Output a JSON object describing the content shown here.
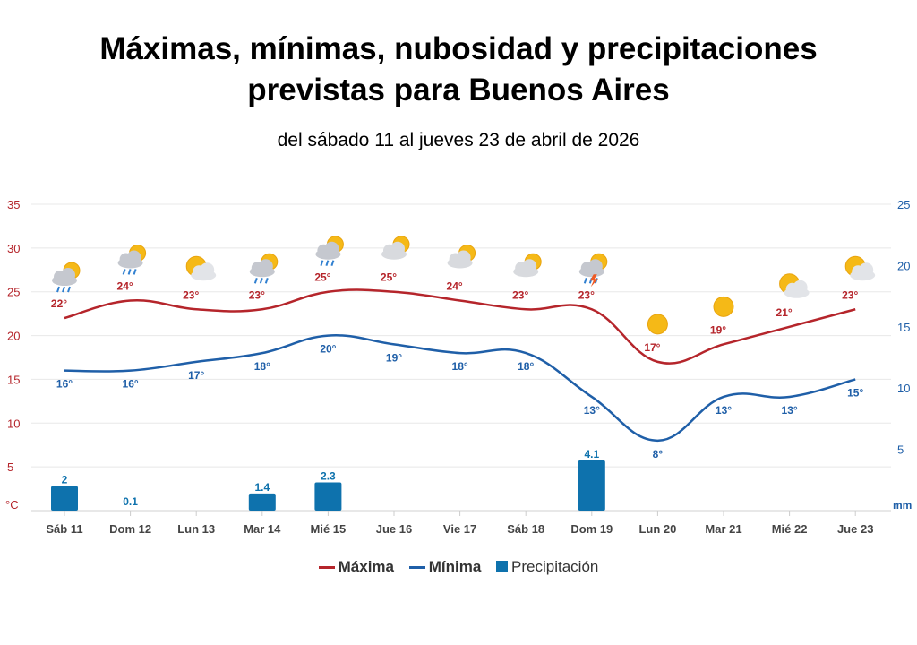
{
  "title_lines": [
    "Máximas, mínimas, nubosidad  y precipitaciones",
    "previstas para Buenos Aires"
  ],
  "subtitle": "del sábado 11 al jueves 23 de abril de 2026",
  "chart_data": {
    "type": "line",
    "categories": [
      "Sáb 11",
      "Dom 12",
      "Lun 13",
      "Mar 14",
      "Mié 15",
      "Jue 16",
      "Vie 17",
      "Sáb 18",
      "Dom 19",
      "Lun 20",
      "Mar 21",
      "Mié 22",
      "Jue 23"
    ],
    "series": [
      {
        "name": "Máxima",
        "type": "line",
        "axis": "left",
        "color": "#b5252b",
        "values": [
          22,
          24,
          23,
          23,
          25,
          25,
          24,
          23,
          23,
          17,
          19,
          21,
          23
        ],
        "labels": [
          "22°",
          "24°",
          "23°",
          "23°",
          "25°",
          "25°",
          "24°",
          "23°",
          "23°",
          "17°",
          "19°",
          "21°",
          "23°"
        ]
      },
      {
        "name": "Mínima",
        "type": "line",
        "axis": "left",
        "color": "#1f5fa8",
        "values": [
          16,
          16,
          17,
          18,
          20,
          19,
          18,
          18,
          13,
          8,
          13,
          13,
          15
        ],
        "labels": [
          "16°",
          "16°",
          "17°",
          "18°",
          "20°",
          "19°",
          "18°",
          "18°",
          "13°",
          "8°",
          "13°",
          "13°",
          "15°"
        ]
      },
      {
        "name": "Precipitación",
        "type": "bar",
        "axis": "right",
        "color": "#0e72ad",
        "values": [
          2,
          0.1,
          null,
          1.4,
          2.3,
          null,
          null,
          null,
          4.1,
          null,
          null,
          null,
          null
        ],
        "labels": [
          "2",
          "0.1",
          "",
          "1.4",
          "2.3",
          "",
          "",
          "",
          "4.1",
          "",
          "",
          "",
          ""
        ]
      }
    ],
    "weather_icons": [
      "rain-sun",
      "rain-sun",
      "sun-cloud",
      "rain-sun",
      "rain-sun",
      "cloud-sun",
      "cloud-sun",
      "cloud-sun",
      "storm-sun",
      "sun",
      "sun",
      "sun-cloud",
      "sun-cloud"
    ],
    "y_left": {
      "unit": "°C",
      "ticks": [
        5,
        10,
        15,
        20,
        25,
        30,
        35
      ],
      "range": [
        0,
        35
      ],
      "color": "#b5252b"
    },
    "y_right": {
      "unit": "mm",
      "ticks": [
        5,
        10,
        15,
        20,
        25
      ],
      "range": [
        0,
        25
      ],
      "color": "#1f5fa8"
    },
    "grid": true,
    "legend_placement": "bottom"
  }
}
